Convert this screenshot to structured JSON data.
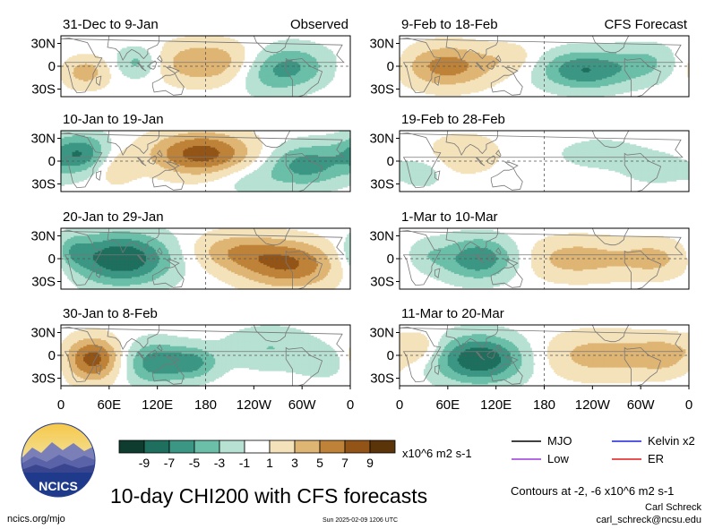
{
  "chart_data": {
    "type": "heatmap",
    "title": "10-day CHI200 with CFS forecasts",
    "variable": "CHI200",
    "units": "x10^6 m2 s-1",
    "columns": [
      {
        "label": "Observed",
        "panels": [
          "31-Dec to 9-Jan",
          "10-Jan to 19-Jan",
          "20-Jan to 29-Jan",
          "30-Jan to 8-Feb"
        ]
      },
      {
        "label": "CFS Forecast",
        "panels": [
          "9-Feb to 18-Feb",
          "19-Feb to 28-Feb",
          "1-Mar to 10-Mar",
          "11-Mar to 20-Mar"
        ]
      }
    ],
    "x_ticks": [
      "0",
      "60E",
      "120E",
      "180",
      "120W",
      "60W",
      "0"
    ],
    "y_ticks": [
      "30N",
      "0",
      "30S"
    ],
    "xlim": [
      0,
      360
    ],
    "ylim": [
      -40,
      40
    ],
    "colorbar": {
      "ticks": [
        "-9",
        "-7",
        "-5",
        "-3",
        "-1",
        "1",
        "3",
        "5",
        "7",
        "9"
      ],
      "colors": [
        "#0e3d2f",
        "#1f6f5e",
        "#3c9684",
        "#6bbfa8",
        "#b7e1d2",
        "#ffffff",
        "#f4e2bb",
        "#dfb574",
        "#be8238",
        "#935517",
        "#5b3409"
      ]
    },
    "contour_levels": "Contours at -2, -6 x10^6 m2 s-1",
    "legend": [
      {
        "name": "MJO",
        "color": "#000000"
      },
      {
        "name": "Kelvin x2",
        "color": "#1a22d6"
      },
      {
        "name": "Low",
        "color": "#9b39d8"
      },
      {
        "name": "ER",
        "color": "#e0191a"
      }
    ],
    "fields": [
      [
        {
          "lon": 180,
          "lat": 5,
          "amp": 5,
          "sx": 45,
          "sy": 20
        },
        {
          "lon": 30,
          "lat": -8,
          "amp": 4,
          "sx": 22,
          "sy": 15
        },
        {
          "lon": 285,
          "lat": 0,
          "amp": -5,
          "sx": 35,
          "sy": 20
        },
        {
          "lon": 95,
          "lat": 5,
          "amp": -4,
          "sx": 20,
          "sy": 15
        },
        {
          "lon": 255,
          "lat": -15,
          "amp": -2,
          "sx": 30,
          "sy": 20
        }
      ],
      [
        {
          "lon": 175,
          "lat": 10,
          "amp": 8,
          "sx": 45,
          "sy": 20
        },
        {
          "lon": 65,
          "lat": -5,
          "amp": 3,
          "sx": 20,
          "sy": 18
        },
        {
          "lon": 25,
          "lat": 10,
          "amp": -7,
          "sx": 28,
          "sy": 18
        },
        {
          "lon": 305,
          "lat": -5,
          "amp": -6,
          "sx": 35,
          "sy": 20
        },
        {
          "lon": 235,
          "lat": -25,
          "amp": -2,
          "sx": 30,
          "sy": 15
        }
      ],
      [
        {
          "lon": 75,
          "lat": 0,
          "amp": -9,
          "sx": 45,
          "sy": 24
        },
        {
          "lon": 285,
          "lat": -8,
          "amp": 7,
          "sx": 45,
          "sy": 22
        },
        {
          "lon": 215,
          "lat": 10,
          "amp": 4,
          "sx": 40,
          "sy": 18
        },
        {
          "lon": 15,
          "lat": 10,
          "amp": -3,
          "sx": 15,
          "sy": 15
        }
      ],
      [
        {
          "lon": 40,
          "lat": -5,
          "amp": 8,
          "sx": 25,
          "sy": 20
        },
        {
          "lon": 115,
          "lat": -10,
          "amp": -6,
          "sx": 28,
          "sy": 20
        },
        {
          "lon": 165,
          "lat": -10,
          "amp": -5,
          "sx": 22,
          "sy": 15
        },
        {
          "lon": 260,
          "lat": 10,
          "amp": -3,
          "sx": 40,
          "sy": 20
        },
        {
          "lon": 330,
          "lat": -10,
          "amp": -2,
          "sx": 25,
          "sy": 15
        }
      ],
      [
        {
          "lon": 60,
          "lat": 0,
          "amp": 6,
          "sx": 40,
          "sy": 20
        },
        {
          "lon": 230,
          "lat": -5,
          "amp": -7,
          "sx": 40,
          "sy": 18
        },
        {
          "lon": 310,
          "lat": 5,
          "amp": -3,
          "sx": 30,
          "sy": 18
        },
        {
          "lon": 140,
          "lat": 10,
          "amp": 2,
          "sx": 25,
          "sy": 15
        }
      ],
      [
        {
          "lon": 80,
          "lat": 10,
          "amp": 3,
          "sx": 30,
          "sy": 18
        },
        {
          "lon": 30,
          "lat": -15,
          "amp": -2,
          "sx": 20,
          "sy": 15
        },
        {
          "lon": 250,
          "lat": 10,
          "amp": -2,
          "sx": 40,
          "sy": 15
        },
        {
          "lon": 320,
          "lat": -10,
          "amp": -2,
          "sx": 30,
          "sy": 15
        }
      ],
      [
        {
          "lon": 100,
          "lat": 0,
          "amp": -7,
          "sx": 35,
          "sy": 20
        },
        {
          "lon": 220,
          "lat": 0,
          "amp": 4,
          "sx": 55,
          "sy": 20
        },
        {
          "lon": 320,
          "lat": 0,
          "amp": 3,
          "sx": 30,
          "sy": 18
        },
        {
          "lon": 30,
          "lat": 5,
          "amp": -2,
          "sx": 20,
          "sy": 15
        }
      ],
      [
        {
          "lon": 100,
          "lat": -5,
          "amp": -9,
          "sx": 40,
          "sy": 22
        },
        {
          "lon": 250,
          "lat": 0,
          "amp": 4,
          "sx": 55,
          "sy": 22
        },
        {
          "lon": 25,
          "lat": 10,
          "amp": 3,
          "sx": 20,
          "sy": 15
        },
        {
          "lon": 330,
          "lat": 0,
          "amp": 3,
          "sx": 25,
          "sy": 18
        }
      ]
    ]
  },
  "logo": {
    "text": "NCICS"
  },
  "footer": {
    "url": "ncics.org/mjo",
    "timestamp": "Sun 2025-02-09 1206 UTC",
    "author": "Carl Schreck",
    "email": "carl_schreck@ncsu.edu"
  }
}
